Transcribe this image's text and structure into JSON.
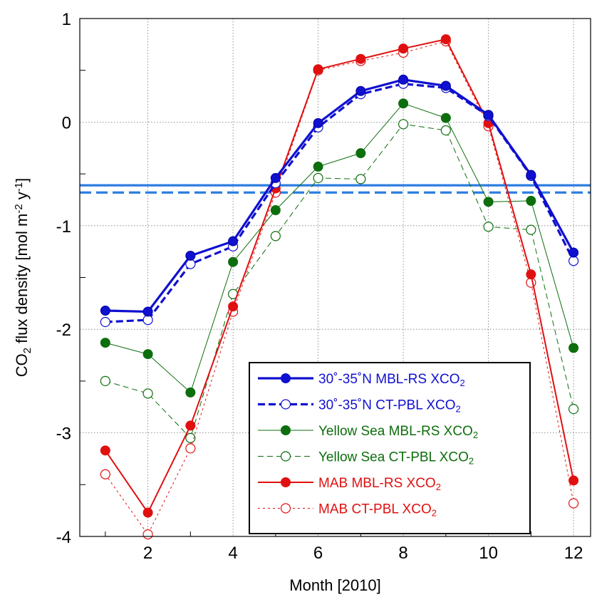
{
  "chart_data": {
    "type": "line",
    "title": "",
    "xlabel": "Month [2010]",
    "ylabel": {
      "prefix": "CO",
      "sub": "2",
      "middle": " flux density [mol m",
      "sup1": "-2",
      "middle2": " y",
      "sup2": "-1",
      "suffix": "]"
    },
    "xlim": [
      0.4,
      12.4
    ],
    "ylim": [
      -4,
      1
    ],
    "x_ticks": [
      2,
      4,
      6,
      8,
      10,
      12
    ],
    "y_ticks": [
      1,
      0,
      -1,
      -2,
      -3,
      -4
    ],
    "grid": true,
    "legend_position": "bottom-right",
    "x": [
      1,
      2,
      3,
      4,
      5,
      6,
      7,
      8,
      9,
      10,
      11,
      12
    ],
    "hlines": [
      {
        "y": -0.61,
        "color": "#2b7de0",
        "dash": "solid"
      },
      {
        "y": -0.68,
        "color": "#2b7de0",
        "dash": "dashed"
      }
    ],
    "series": [
      {
        "label": {
          "main": "30˚-35˚N MBL-RS XCO",
          "sub": "2"
        },
        "color": "#1010d0",
        "line": "solid",
        "marker": "filled",
        "values": [
          -1.82,
          -1.83,
          -1.29,
          -1.15,
          -0.54,
          -0.01,
          0.3,
          0.41,
          0.35,
          0.07,
          -0.51,
          -1.26
        ]
      },
      {
        "label": {
          "main": "30˚-35˚N CT-PBL XCO",
          "sub": "2"
        },
        "color": "#1010d0",
        "line": "dashed",
        "marker": "open",
        "values": [
          -1.93,
          -1.91,
          -1.37,
          -1.2,
          -0.59,
          -0.05,
          0.27,
          0.37,
          0.33,
          0.06,
          -0.52,
          -1.34
        ]
      },
      {
        "label": {
          "main": "Yellow Sea MBL-RS XCO",
          "sub": "2"
        },
        "color": "#0d6e0d",
        "line": "solid",
        "marker": "filled",
        "values": [
          -2.13,
          -2.24,
          -2.61,
          -1.35,
          -0.85,
          -0.43,
          -0.3,
          0.18,
          0.04,
          -0.77,
          -0.76,
          -2.18
        ]
      },
      {
        "label": {
          "main": "Yellow Sea CT-PBL XCO",
          "sub": "2"
        },
        "color": "#0d6e0d",
        "line": "dashed",
        "marker": "open",
        "values": [
          -2.5,
          -2.62,
          -3.05,
          -1.66,
          -1.1,
          -0.54,
          -0.55,
          -0.02,
          -0.08,
          -1.01,
          -1.04,
          -2.77
        ]
      },
      {
        "label": {
          "main": "MAB MBL-RS XCO",
          "sub": "2"
        },
        "color": "#e01010",
        "line": "solid",
        "marker": "filled",
        "values": [
          -3.17,
          -3.77,
          -2.93,
          -1.78,
          -0.64,
          0.51,
          0.61,
          0.71,
          0.8,
          -0.01,
          -1.47,
          -3.46
        ]
      },
      {
        "label": {
          "main": "MAB CT-PBL XCO",
          "sub": "2"
        },
        "color": "#e01010",
        "line": "dotted",
        "marker": "open",
        "values": [
          -3.4,
          -3.98,
          -3.15,
          -1.83,
          -0.68,
          0.5,
          0.59,
          0.67,
          0.78,
          -0.04,
          -1.55,
          -3.68
        ]
      }
    ]
  }
}
